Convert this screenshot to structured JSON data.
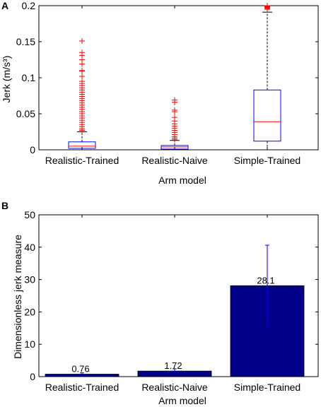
{
  "chart_data": [
    {
      "panel": "A",
      "type": "box",
      "xlabel": "Arm model",
      "ylabel": "Jerk (m/s³)",
      "ylim": [
        0,
        0.2
      ],
      "yticks": [
        "0",
        "0.05",
        "0.1",
        "0.15",
        "0.2"
      ],
      "categories": [
        "Realistic-Trained",
        "Realistic-Naive",
        "Simple-Trained"
      ],
      "boxes": [
        {
          "q1": 0.002,
          "median": 0.005,
          "q3": 0.011,
          "whisker_low": 0.0,
          "whisker_high": 0.025,
          "outliers": [
            0.151,
            0.135,
            0.131,
            0.125,
            0.119,
            0.11,
            0.109,
            0.102,
            0.095,
            0.092,
            0.089,
            0.086,
            0.083,
            0.08,
            0.077,
            0.074,
            0.071,
            0.068,
            0.065,
            0.062,
            0.059,
            0.056,
            0.053,
            0.05,
            0.047,
            0.044,
            0.041,
            0.038,
            0.035,
            0.032,
            0.029,
            0.027
          ]
        },
        {
          "q1": 0.001,
          "median": 0.004,
          "q3": 0.006,
          "whisker_low": 0.0,
          "whisker_high": 0.013,
          "outliers": [
            0.069,
            0.066,
            0.055,
            0.053,
            0.045,
            0.04,
            0.036,
            0.033,
            0.03,
            0.027,
            0.024,
            0.021,
            0.018,
            0.016,
            0.014
          ]
        },
        {
          "q1": 0.012,
          "median": 0.039,
          "q3": 0.083,
          "whisker_low": 0.0,
          "whisker_high": 0.191,
          "outliers": [
            0.2,
            0.199,
            0.198,
            0.197,
            0.196,
            0.195
          ]
        }
      ],
      "box_color": "#0000ff",
      "median_color": "#ff0000",
      "outlier_color": "#ff0000"
    },
    {
      "panel": "B",
      "type": "bar",
      "xlabel": "Arm model",
      "ylabel": "Dimensionless jerk measure",
      "ylim": [
        0,
        50
      ],
      "yticks": [
        "0",
        "10",
        "20",
        "30",
        "40",
        "50"
      ],
      "categories": [
        "Realistic-Trained",
        "Realistic-Naive",
        "Simple-Trained"
      ],
      "values": [
        0.76,
        1.72,
        28.1
      ],
      "labels": [
        "0.76",
        "1.72",
        "28.1"
      ],
      "errors": [
        0.4,
        0.7,
        12.5
      ],
      "bar_color": "#00008b",
      "error_color": "#0000ff"
    }
  ]
}
